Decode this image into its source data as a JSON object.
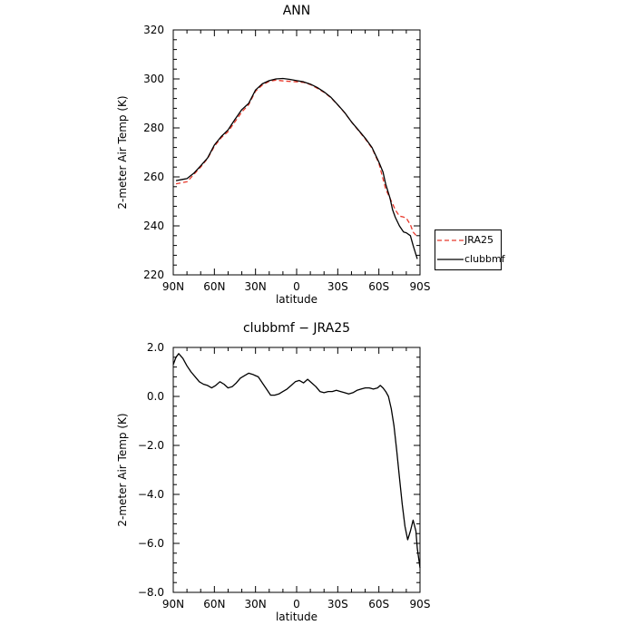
{
  "chart_data": [
    {
      "type": "line",
      "title": "ANN",
      "xlabel": "latitude",
      "ylabel": "2-meter Air Temp (K)",
      "xlim": [
        90,
        -90
      ],
      "ylim": [
        220,
        320
      ],
      "x_tick_values": [
        90,
        60,
        30,
        0,
        -30,
        -60,
        -90
      ],
      "x_tick_labels": [
        "90N",
        "60N",
        "30N",
        "0",
        "30S",
        "60S",
        "90S"
      ],
      "y_tick_values": [
        220,
        240,
        260,
        280,
        300,
        320
      ],
      "y_tick_labels": [
        "220",
        "240",
        "260",
        "280",
        "300",
        "320"
      ],
      "legend_position": "right",
      "series": [
        {
          "name": "JRA25",
          "color": "#e8392c",
          "dash": "dashed",
          "x": [
            88,
            80,
            75,
            70,
            65,
            60,
            55,
            50,
            45,
            40,
            35,
            30,
            25,
            20,
            15,
            10,
            5,
            0,
            -5,
            -10,
            -15,
            -20,
            -25,
            -30,
            -35,
            -40,
            -45,
            -50,
            -55,
            -60,
            -65,
            -70,
            -72,
            -75,
            -78,
            -80,
            -83,
            -85,
            -88
          ],
          "y": [
            257.2,
            258,
            261,
            264,
            267.5,
            272.5,
            276,
            278.5,
            282.5,
            286.5,
            289.5,
            295,
            297.5,
            299,
            299.5,
            299.2,
            299,
            298.8,
            298.6,
            297.7,
            296.2,
            294.5,
            292.3,
            289.4,
            286.2,
            282.5,
            279,
            275.5,
            271.7,
            265.5,
            255,
            249,
            246.5,
            244,
            243.6,
            243.2,
            240.5,
            237.5,
            235.5
          ]
        },
        {
          "name": "clubbmf",
          "color": "#000000",
          "dash": "solid",
          "x": [
            88,
            83,
            80,
            75,
            70,
            65,
            60,
            55,
            50,
            45,
            40,
            35,
            30,
            25,
            20,
            15,
            10,
            5,
            0,
            -5,
            -10,
            -15,
            -20,
            -25,
            -30,
            -35,
            -40,
            -45,
            -50,
            -55,
            -60,
            -63,
            -65,
            -68,
            -70,
            -72,
            -75,
            -78,
            -80,
            -83,
            -85,
            -88
          ],
          "y": [
            258.5,
            259,
            259.3,
            261.5,
            264.5,
            267.7,
            273,
            276.5,
            279.2,
            283.5,
            287.5,
            290,
            295.5,
            298,
            299.3,
            300,
            300.2,
            299.8,
            299.3,
            298.8,
            297.9,
            296.5,
            294.7,
            292.5,
            289.5,
            286.3,
            282.5,
            279.2,
            275.8,
            272,
            266,
            262,
            257,
            251.5,
            246.5,
            243.5,
            240,
            237.5,
            237.2,
            236,
            232,
            226.5
          ]
        }
      ]
    },
    {
      "type": "line",
      "title": "clubbmf  −  JRA25",
      "xlabel": "latitude",
      "ylabel": "2-meter Air Temp (K)",
      "xlim": [
        90,
        -90
      ],
      "ylim": [
        -8,
        2
      ],
      "x_tick_values": [
        90,
        60,
        30,
        0,
        -30,
        -60,
        -90
      ],
      "x_tick_labels": [
        "90N",
        "60N",
        "30N",
        "0",
        "30S",
        "60S",
        "90S"
      ],
      "y_tick_values": [
        -8,
        -6,
        -4,
        -2,
        0,
        2
      ],
      "y_tick_labels": [
        "−8.0",
        "−6.0",
        "−4.0",
        "−2.0",
        "0.0",
        "2.0"
      ],
      "series": [
        {
          "color": "#000000",
          "dash": "solid",
          "x": [
            90,
            88,
            86,
            83,
            80,
            77,
            74,
            71,
            68,
            65,
            62,
            59,
            56,
            53,
            50,
            47,
            44,
            41,
            38,
            35,
            32,
            30,
            28,
            25,
            22,
            19,
            16,
            13,
            10,
            7,
            4,
            1,
            -2,
            -5,
            -8,
            -11,
            -14,
            -17,
            -20,
            -23,
            -26,
            -29,
            -32,
            -35,
            -38,
            -41,
            -44,
            -47,
            -50,
            -53,
            -56,
            -59,
            -61,
            -63,
            -65,
            -67,
            -69,
            -71,
            -73,
            -75,
            -77,
            -79,
            -81,
            -83,
            -85,
            -87,
            -88,
            -90
          ],
          "y": [
            1.3,
            1.6,
            1.75,
            1.55,
            1.25,
            1.0,
            0.8,
            0.6,
            0.5,
            0.45,
            0.35,
            0.45,
            0.6,
            0.5,
            0.35,
            0.4,
            0.55,
            0.75,
            0.85,
            0.95,
            0.9,
            0.85,
            0.8,
            0.55,
            0.3,
            0.05,
            0.05,
            0.1,
            0.2,
            0.3,
            0.45,
            0.6,
            0.65,
            0.55,
            0.7,
            0.55,
            0.4,
            0.2,
            0.15,
            0.2,
            0.2,
            0.25,
            0.2,
            0.15,
            0.1,
            0.15,
            0.25,
            0.3,
            0.35,
            0.35,
            0.3,
            0.35,
            0.45,
            0.35,
            0.2,
            0.0,
            -0.5,
            -1.2,
            -2.2,
            -3.3,
            -4.4,
            -5.3,
            -5.85,
            -5.5,
            -5.05,
            -5.5,
            -6.2,
            -7.0
          ]
        }
      ]
    }
  ]
}
